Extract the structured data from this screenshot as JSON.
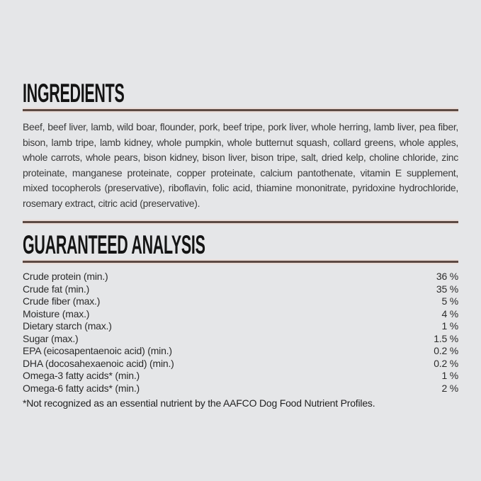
{
  "page": {
    "background_color": "#e5e6e8",
    "divider_color": "#5c4a44",
    "divider_edge_color": "#eaddd8",
    "heading_color": "#141414"
  },
  "ingredients": {
    "heading": "INGREDIENTS",
    "text": "Beef, beef liver, lamb, wild boar, flounder, pork, beef tripe, pork liver, whole herring, lamb liver, pea fiber, bison, lamb tripe, lamb kidney, whole pumpkin, whole butternut squash, collard greens, whole apples, whole carrots, whole pears, bison kidney, bison liver, bison tripe, salt, dried kelp, choline chloride, zinc proteinate, manganese proteinate, copper proteinate, calcium pantothenate, vitamin E supplement, mixed tocopherols (preservative), riboflavin, folic acid, thiamine mononitrate, pyridoxine hydrochloride, rosemary extract, citric acid (preservative)."
  },
  "guaranteed_analysis": {
    "heading": "GUARANTEED ANALYSIS",
    "rows": [
      {
        "label": "Crude protein (min.)",
        "value": "36 %"
      },
      {
        "label": "Crude fat (min.)",
        "value": "35 %"
      },
      {
        "label": "Crude fiber (max.)",
        "value": "5 %"
      },
      {
        "label": "Moisture (max.)",
        "value": "4 %"
      },
      {
        "label": "Dietary starch (max.)",
        "value": "1 %"
      },
      {
        "label": "Sugar (max.)",
        "value": "1.5 %"
      },
      {
        "label": "EPA (eicosapentaenoic acid) (min.)",
        "value": "0.2 %"
      },
      {
        "label": "DHA (docosahexaenoic acid) (min.)",
        "value": "0.2 %"
      },
      {
        "label": "Omega-3 fatty acids* (min.)",
        "value": "1 %"
      },
      {
        "label": "Omega-6 fatty acids* (min.)",
        "value": "2 %"
      }
    ],
    "footnote": "*Not recognized as an essential nutrient by the AAFCO Dog Food Nutrient Profiles."
  }
}
